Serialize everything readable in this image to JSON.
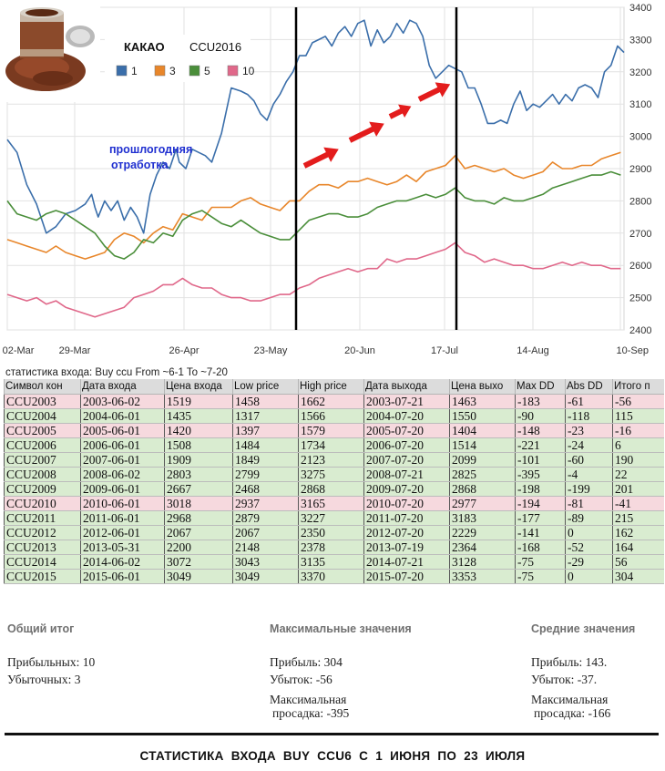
{
  "chart_data": {
    "type": "line",
    "title": "КАКАО",
    "subtitle": "CCU2016",
    "annotation": "прошлогодняя\nотработка",
    "x_ticks": [
      "02-Mar",
      "29-Mar",
      "26-Apr",
      "23-May",
      "20-Jun",
      "17-Jul",
      "14-Aug",
      "10-Sep"
    ],
    "y_ticks": [
      2400,
      2500,
      2600,
      2700,
      2800,
      2900,
      3000,
      3100,
      3200,
      3300,
      3400
    ],
    "ylim": [
      2400,
      3400
    ],
    "y_axis_position": "right",
    "grid": true,
    "legend_position": "top-left",
    "vertical_markers": [
      "23-May",
      "17-Jul"
    ],
    "series": [
      {
        "name": "1",
        "color": "#3a6eaa",
        "x": [
          0,
          3,
          6,
          9,
          12,
          15,
          18,
          21,
          24,
          26,
          27,
          28,
          30,
          32,
          34,
          36,
          38,
          40,
          42,
          44,
          46,
          48,
          50,
          52,
          53,
          55,
          57,
          59,
          61,
          63,
          66,
          69,
          72,
          74,
          76,
          78,
          80,
          82,
          84,
          86,
          88,
          90,
          92,
          94,
          96,
          98,
          100,
          102,
          104,
          106,
          108,
          110,
          112,
          114,
          116,
          118,
          120,
          122,
          124,
          126,
          128,
          130,
          132,
          134,
          136,
          138,
          140,
          142,
          144,
          146,
          148,
          150,
          152,
          154,
          156,
          158,
          160,
          162,
          164,
          166,
          168,
          170,
          172,
          174,
          176,
          178,
          180,
          182,
          184,
          186,
          188,
          190
        ],
        "values": [
          2990,
          2950,
          2850,
          2790,
          2700,
          2720,
          2760,
          2770,
          2790,
          2820,
          2780,
          2750,
          2800,
          2770,
          2800,
          2740,
          2780,
          2750,
          2700,
          2820,
          2880,
          2920,
          2900,
          2960,
          2920,
          2900,
          2960,
          2950,
          2940,
          2920,
          3010,
          3150,
          3140,
          3130,
          3110,
          3070,
          3050,
          3100,
          3130,
          3170,
          3200,
          3250,
          3250,
          3290,
          3300,
          3310,
          3280,
          3320,
          3340,
          3310,
          3350,
          3360,
          3280,
          3330,
          3290,
          3310,
          3350,
          3320,
          3360,
          3350,
          3310,
          3220,
          3180,
          3200,
          3220,
          3210,
          3200,
          3150,
          3150,
          3100,
          3040,
          3040,
          3050,
          3040,
          3100,
          3140,
          3080,
          3100,
          3090,
          3110,
          3130,
          3100,
          3130,
          3110,
          3150,
          3160,
          3150,
          3120,
          3200,
          3220,
          3280,
          3260
        ]
      },
      {
        "name": "3",
        "color": "#e8862a",
        "x": [
          0,
          3,
          6,
          9,
          12,
          15,
          18,
          21,
          24,
          27,
          30,
          33,
          36,
          39,
          42,
          45,
          48,
          51,
          54,
          57,
          60,
          63,
          66,
          69,
          72,
          75,
          78,
          81,
          84,
          87,
          90,
          93,
          96,
          99,
          102,
          105,
          108,
          111,
          114,
          117,
          120,
          123,
          126,
          129,
          132,
          135,
          138,
          141,
          144,
          147,
          150,
          153,
          156,
          159,
          162,
          165,
          168,
          171,
          174,
          177,
          180,
          183,
          186,
          189
        ],
        "values": [
          2680,
          2670,
          2660,
          2650,
          2640,
          2660,
          2640,
          2630,
          2620,
          2630,
          2640,
          2680,
          2700,
          2690,
          2670,
          2700,
          2720,
          2710,
          2760,
          2750,
          2740,
          2780,
          2780,
          2780,
          2800,
          2810,
          2790,
          2780,
          2770,
          2800,
          2800,
          2830,
          2850,
          2850,
          2840,
          2860,
          2860,
          2870,
          2860,
          2850,
          2860,
          2880,
          2860,
          2890,
          2900,
          2910,
          2940,
          2900,
          2910,
          2900,
          2890,
          2900,
          2880,
          2870,
          2880,
          2890,
          2920,
          2900,
          2900,
          2910,
          2910,
          2930,
          2940,
          2950
        ]
      },
      {
        "name": "5",
        "color": "#4a8e3a",
        "x": [
          0,
          3,
          6,
          9,
          12,
          15,
          18,
          21,
          24,
          27,
          30,
          33,
          36,
          39,
          42,
          45,
          48,
          51,
          54,
          57,
          60,
          63,
          66,
          69,
          72,
          75,
          78,
          81,
          84,
          87,
          90,
          93,
          96,
          99,
          102,
          105,
          108,
          111,
          114,
          117,
          120,
          123,
          126,
          129,
          132,
          135,
          138,
          141,
          144,
          147,
          150,
          153,
          156,
          159,
          162,
          165,
          168,
          171,
          174,
          177,
          180,
          183,
          186,
          189
        ],
        "values": [
          2800,
          2760,
          2750,
          2740,
          2760,
          2770,
          2760,
          2740,
          2720,
          2700,
          2660,
          2630,
          2620,
          2640,
          2680,
          2670,
          2700,
          2690,
          2740,
          2760,
          2770,
          2750,
          2730,
          2720,
          2740,
          2720,
          2700,
          2690,
          2680,
          2680,
          2710,
          2740,
          2750,
          2760,
          2760,
          2750,
          2750,
          2760,
          2780,
          2790,
          2800,
          2800,
          2810,
          2820,
          2810,
          2820,
          2840,
          2810,
          2800,
          2800,
          2790,
          2810,
          2800,
          2800,
          2810,
          2820,
          2840,
          2850,
          2860,
          2870,
          2880,
          2880,
          2890,
          2880
        ]
      },
      {
        "name": "10",
        "color": "#e0688a",
        "x": [
          0,
          3,
          6,
          9,
          12,
          15,
          18,
          21,
          24,
          27,
          30,
          33,
          36,
          39,
          42,
          45,
          48,
          51,
          54,
          57,
          60,
          63,
          66,
          69,
          72,
          75,
          78,
          81,
          84,
          87,
          90,
          93,
          96,
          99,
          102,
          105,
          108,
          111,
          114,
          117,
          120,
          123,
          126,
          129,
          132,
          135,
          138,
          141,
          144,
          147,
          150,
          153,
          156,
          159,
          162,
          165,
          168,
          171,
          174,
          177,
          180,
          183,
          186,
          189
        ],
        "values": [
          2510,
          2500,
          2490,
          2500,
          2480,
          2490,
          2470,
          2460,
          2450,
          2440,
          2450,
          2460,
          2470,
          2500,
          2510,
          2520,
          2540,
          2540,
          2560,
          2540,
          2530,
          2530,
          2510,
          2500,
          2500,
          2490,
          2490,
          2500,
          2510,
          2510,
          2530,
          2540,
          2560,
          2570,
          2580,
          2590,
          2580,
          2590,
          2590,
          2620,
          2610,
          2620,
          2620,
          2630,
          2640,
          2650,
          2670,
          2640,
          2630,
          2610,
          2620,
          2610,
          2600,
          2600,
          2590,
          2590,
          2600,
          2610,
          2600,
          2610,
          2600,
          2600,
          2590,
          2590
        ]
      }
    ]
  },
  "table": {
    "title": "статистика входа: Buy ccu From ~6-1 To ~7-20",
    "headers": [
      "Символ кон",
      "Дата входа",
      "Цена входа",
      "Low price",
      "High price",
      "Дата выхода",
      "Цена выхо",
      "Max DD",
      "Abs DD",
      "Итого п"
    ],
    "rows": [
      {
        "status": "loss",
        "cells": [
          "CCU2003",
          "2003-06-02",
          "1519",
          "1458",
          "1662",
          "2003-07-21",
          "1463",
          "-183",
          "-61",
          "-56"
        ]
      },
      {
        "status": "win",
        "cells": [
          "CCU2004",
          "2004-06-01",
          "1435",
          "1317",
          "1566",
          "2004-07-20",
          "1550",
          "-90",
          "-118",
          "115"
        ]
      },
      {
        "status": "loss",
        "cells": [
          "CCU2005",
          "2005-06-01",
          "1420",
          "1397",
          "1579",
          "2005-07-20",
          "1404",
          "-148",
          "-23",
          "-16"
        ]
      },
      {
        "status": "win",
        "cells": [
          "CCU2006",
          "2006-06-01",
          "1508",
          "1484",
          "1734",
          "2006-07-20",
          "1514",
          "-221",
          "-24",
          "6"
        ]
      },
      {
        "status": "win",
        "cells": [
          "CCU2007",
          "2007-06-01",
          "1909",
          "1849",
          "2123",
          "2007-07-20",
          "2099",
          "-101",
          "-60",
          "190"
        ]
      },
      {
        "status": "win",
        "cells": [
          "CCU2008",
          "2008-06-02",
          "2803",
          "2799",
          "3275",
          "2008-07-21",
          "2825",
          "-395",
          "-4",
          "22"
        ]
      },
      {
        "status": "win",
        "cells": [
          "CCU2009",
          "2009-06-01",
          "2667",
          "2468",
          "2868",
          "2009-07-20",
          "2868",
          "-198",
          "-199",
          "201"
        ]
      },
      {
        "status": "loss",
        "cells": [
          "CCU2010",
          "2010-06-01",
          "3018",
          "2937",
          "3165",
          "2010-07-20",
          "2977",
          "-194",
          "-81",
          "-41"
        ]
      },
      {
        "status": "win",
        "cells": [
          "CCU2011",
          "2011-06-01",
          "2968",
          "2879",
          "3227",
          "2011-07-20",
          "3183",
          "-177",
          "-89",
          "215"
        ]
      },
      {
        "status": "win",
        "cells": [
          "CCU2012",
          "2012-06-01",
          "2067",
          "2067",
          "2350",
          "2012-07-20",
          "2229",
          "-141",
          "0",
          "162"
        ]
      },
      {
        "status": "win",
        "cells": [
          "CCU2013",
          "2013-05-31",
          "2200",
          "2148",
          "2378",
          "2013-07-19",
          "2364",
          "-168",
          "-52",
          "164"
        ]
      },
      {
        "status": "win",
        "cells": [
          "CCU2014",
          "2014-06-02",
          "3072",
          "3043",
          "3135",
          "2014-07-21",
          "3128",
          "-75",
          "-29",
          "56"
        ]
      },
      {
        "status": "win",
        "cells": [
          "CCU2015",
          "2015-06-01",
          "3049",
          "3049",
          "3370",
          "2015-07-20",
          "3353",
          "-75",
          "0",
          "304"
        ]
      }
    ]
  },
  "summary": {
    "total": {
      "title": "Общий итог",
      "profitable": "Прибыльных: 10",
      "losing": "Убыточных: 3"
    },
    "max": {
      "title": "Максимальные значения",
      "profit": "Прибыль: 304",
      "loss": "Убыток: -56",
      "dd_line1": "Максимальная",
      "dd_line2": "просадка: -395"
    },
    "avg": {
      "title": "Средние значения",
      "profit": "Прибыль: 143.",
      "loss": "Убыток: -37.",
      "dd_line1": "Максимальная",
      "dd_line2": "просадка: -166"
    }
  },
  "footer": {
    "title": "СТАТИСТИКА  ВХОДА  BUY  CCU6    С 1 ИЮНЯ  ПО 23 ИЮЛЯ"
  },
  "colors": {
    "win_row": "#d9ecd0",
    "loss_row": "#f6d9de",
    "arrow": "#e31c1c",
    "annotation": "#1f2fd0",
    "marker": "#000000"
  }
}
